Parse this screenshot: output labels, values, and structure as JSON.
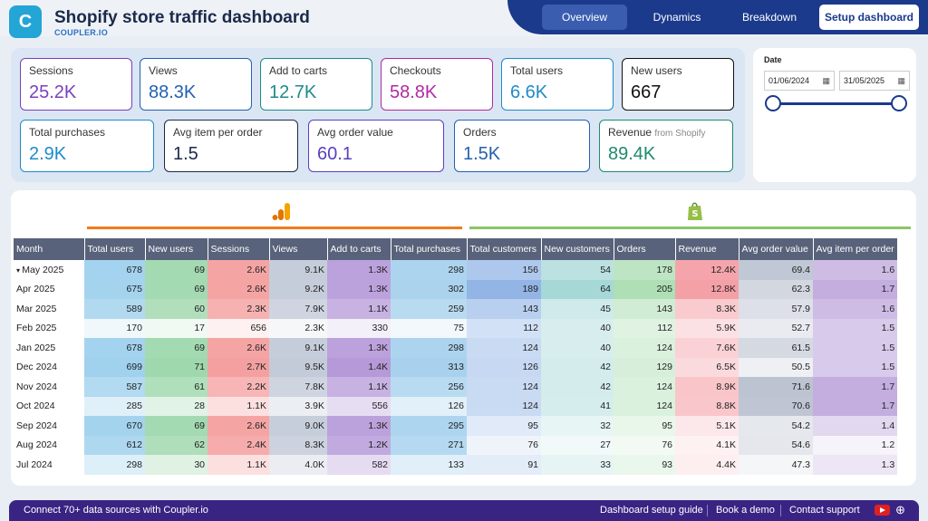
{
  "header": {
    "title": "Shopify store traffic dashboard",
    "subtitle": "COUPLER.IO",
    "logo": "coupler-logo",
    "nav": [
      {
        "label": "Overview"
      },
      {
        "label": "Dynamics"
      },
      {
        "label": "Breakdown"
      }
    ],
    "setup_label": "Setup dashboard"
  },
  "kpis": [
    {
      "label": "Sessions",
      "value": "25.2K",
      "color": "#7b3fbf"
    },
    {
      "label": "Views",
      "value": "88.3K",
      "color": "#2460b0"
    },
    {
      "label": "Add to carts",
      "value": "12.7K",
      "color": "#1e8b8b"
    },
    {
      "label": "Checkouts",
      "value": "58.8K",
      "color": "#b02aa0"
    },
    {
      "label": "Total users",
      "value": "6.6K",
      "color": "#1e8bc8"
    },
    {
      "label": "New users",
      "value": "667",
      "color": "#111111"
    },
    {
      "label": "Total purchases",
      "value": "2.9K",
      "color": "#1e8bc8"
    },
    {
      "label": "Avg item per order",
      "value": "1.5",
      "color": "#1b2a4a"
    },
    {
      "label": "Avg order value",
      "value": "60.1",
      "color": "#5a3fbf"
    },
    {
      "label": "Orders",
      "value": "1.5K",
      "color": "#2460b0"
    },
    {
      "label": "Revenue",
      "suffix": "from Shopify",
      "value": "89.4K",
      "color": "#1e8b6b"
    }
  ],
  "date": {
    "label": "Date",
    "from": "01/06/2024",
    "to": "31/05/2025"
  },
  "table": {
    "ga_icon": "google-analytics-icon",
    "shopify_icon": "shopify-bag-icon",
    "headers": [
      "Month",
      "Total users",
      "New users",
      "Sessions",
      "Views",
      "Add to carts",
      "Total purchases",
      "Total customers",
      "New customers",
      "Orders",
      "Revenue",
      "Avg order value",
      "Avg item per order"
    ],
    "rows": [
      [
        "May 2025",
        "678",
        "69",
        "2.6K",
        "9.1K",
        "1.3K",
        "298",
        "156",
        "54",
        "178",
        "12.4K",
        "69.4",
        "1.6"
      ],
      [
        "Apr 2025",
        "675",
        "69",
        "2.6K",
        "9.2K",
        "1.3K",
        "302",
        "189",
        "64",
        "205",
        "12.8K",
        "62.3",
        "1.7"
      ],
      [
        "Mar 2025",
        "589",
        "60",
        "2.3K",
        "7.9K",
        "1.1K",
        "259",
        "143",
        "45",
        "143",
        "8.3K",
        "57.9",
        "1.6"
      ],
      [
        "Feb 2025",
        "170",
        "17",
        "656",
        "2.3K",
        "330",
        "75",
        "112",
        "40",
        "112",
        "5.9K",
        "52.7",
        "1.5"
      ],
      [
        "Jan 2025",
        "678",
        "69",
        "2.6K",
        "9.1K",
        "1.3K",
        "298",
        "124",
        "40",
        "124",
        "7.6K",
        "61.5",
        "1.5"
      ],
      [
        "Dec 2024",
        "699",
        "71",
        "2.7K",
        "9.5K",
        "1.4K",
        "313",
        "126",
        "42",
        "129",
        "6.5K",
        "50.5",
        "1.5"
      ],
      [
        "Nov 2024",
        "587",
        "61",
        "2.2K",
        "7.8K",
        "1.1K",
        "256",
        "124",
        "42",
        "124",
        "8.9K",
        "71.6",
        "1.7"
      ],
      [
        "Oct 2024",
        "285",
        "28",
        "1.1K",
        "3.9K",
        "556",
        "126",
        "124",
        "41",
        "124",
        "8.8K",
        "70.6",
        "1.7"
      ],
      [
        "Sep 2024",
        "670",
        "69",
        "2.6K",
        "9.0K",
        "1.3K",
        "295",
        "95",
        "32",
        "95",
        "5.1K",
        "54.2",
        "1.4"
      ],
      [
        "Aug 2024",
        "612",
        "62",
        "2.4K",
        "8.3K",
        "1.2K",
        "271",
        "76",
        "27",
        "76",
        "4.1K",
        "54.6",
        "1.2"
      ],
      [
        "Jul 2024",
        "298",
        "30",
        "1.1K",
        "4.0K",
        "582",
        "133",
        "91",
        "33",
        "93",
        "4.4K",
        "47.3",
        "1.3"
      ]
    ]
  },
  "footer": {
    "left": "Connect 70+ data sources with Coupler.io",
    "links": [
      "Dashboard setup guide",
      "Book a demo",
      "Contact support"
    ]
  }
}
